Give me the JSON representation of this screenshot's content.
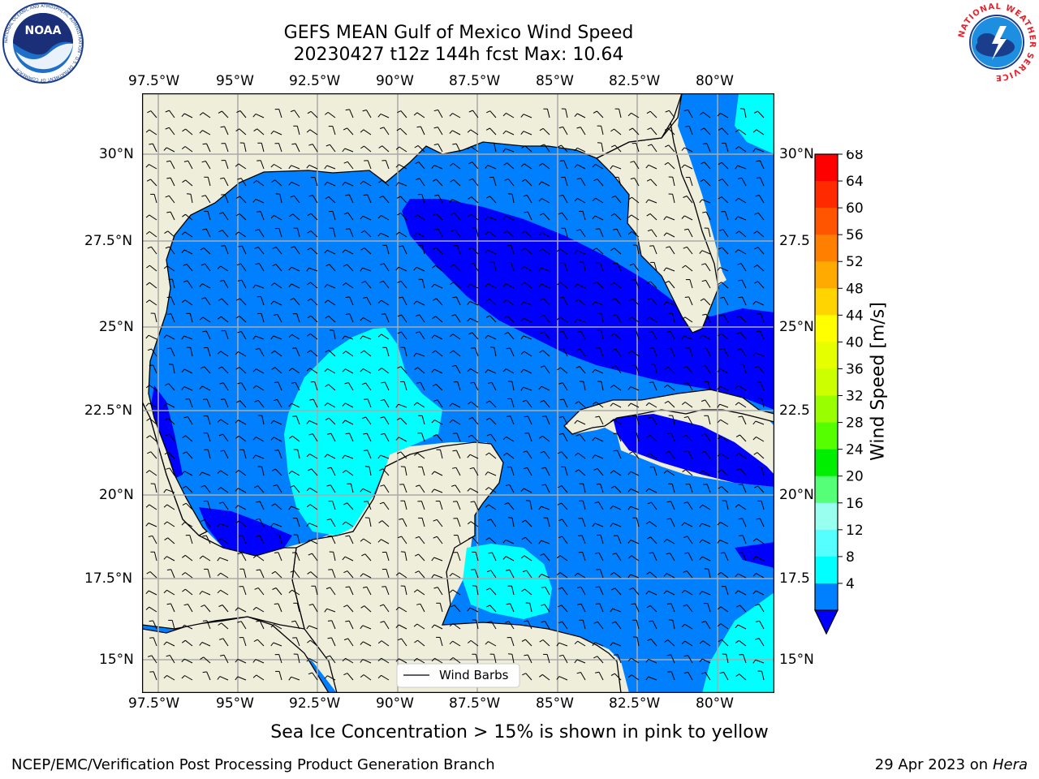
{
  "title": {
    "line1": "GEFS MEAN Gulf of Mexico Wind Speed",
    "line2": "20230427 t12z 144h fcst   Max: 10.64"
  },
  "logos": {
    "noaa_text": "NOAA",
    "noaa_ring": "NATIONAL OCEANIC AND ATMOSPHERIC ADMINISTRATION · U.S. DEPARTMENT OF COMMERCE",
    "nws_ring": "NATIONAL WEATHER SERVICE"
  },
  "map": {
    "lon_labels": [
      "97.5°W",
      "95°W",
      "92.5°W",
      "90°W",
      "87.5°W",
      "85°W",
      "82.5°W",
      "80°W"
    ],
    "lat_labels_left": [
      "30°N",
      "27.5°N",
      "25°N",
      "22.5°N",
      "20°N",
      "17.5°N",
      "15°N"
    ],
    "lat_labels_right": [
      "30°N",
      "27.5",
      "25°N",
      "22.5",
      "20°N",
      "17.5",
      "15°N"
    ],
    "legend_label": "Wind Barbs"
  },
  "colorbar": {
    "label": "Wind Speed [m/s]",
    "ticks": [
      "68",
      "64",
      "60",
      "56",
      "52",
      "48",
      "44",
      "40",
      "36",
      "32",
      "28",
      "24",
      "20",
      "16",
      "12",
      "8",
      "4"
    ],
    "colors": [
      "#ff0000",
      "#ff2a00",
      "#ff5500",
      "#ff7f00",
      "#ffaa00",
      "#ffd400",
      "#ffff00",
      "#e6ff00",
      "#ccff00",
      "#99ff00",
      "#55ff00",
      "#00ee00",
      "#55ff77",
      "#99ffee",
      "#55ffff",
      "#00ffff",
      "#0080ff"
    ],
    "extend_color": "#0000ff"
  },
  "notes": {
    "sea_ice": "Sea Ice Concentration > 15% is shown in pink to yellow",
    "footer_left": "NCEP/EMC/Verification Post Processing Product Generation Branch",
    "footer_date": "29 Apr 2023 on ",
    "footer_host": "Hera"
  }
}
